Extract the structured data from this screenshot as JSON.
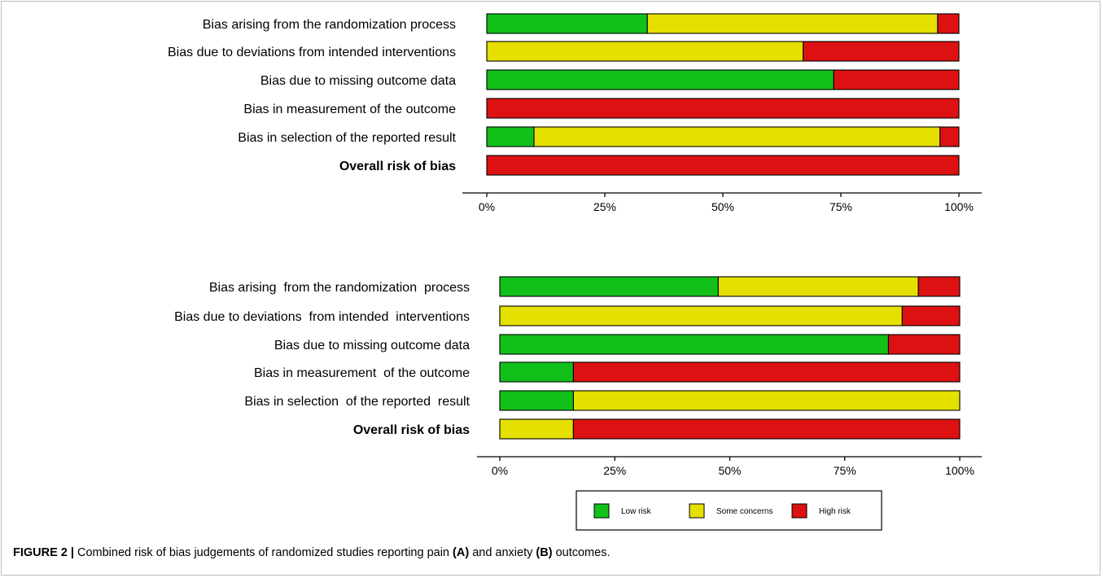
{
  "chart_data": [
    {
      "type": "bar",
      "stacked": true,
      "orientation": "horizontal",
      "categories": [
        "Bias arising from the randomization process",
        "Bias due to deviations from intended interventions",
        "Bias due to missing outcome data",
        "Bias in measurement of the outcome",
        "Bias in selection of the reported result",
        "Overall risk of bias"
      ],
      "series": [
        {
          "name": "Low risk",
          "color": "#11c11a",
          "values": [
            34,
            0,
            73.5,
            0,
            10,
            0
          ]
        },
        {
          "name": "Some concerns",
          "color": "#e5e000",
          "values": [
            61.5,
            67,
            0,
            0,
            86,
            0
          ]
        },
        {
          "name": "High risk",
          "color": "#dd1111",
          "values": [
            4.5,
            33,
            26.5,
            100,
            4,
            100
          ]
        }
      ],
      "xlim": [
        0,
        100
      ],
      "xticks": [
        "0%",
        "25%",
        "50%",
        "75%",
        "100%"
      ]
    },
    {
      "type": "bar",
      "stacked": true,
      "orientation": "horizontal",
      "categories": [
        "Bias arising  from the randomization  process",
        "Bias due to deviations  from intended  interventions",
        "Bias due to missing outcome data",
        "Bias in measurement  of the outcome",
        "Bias in selection  of the reported  result",
        "Overall risk of bias"
      ],
      "series": [
        {
          "name": "Low risk",
          "color": "#11c11a",
          "values": [
            47.5,
            0,
            84.5,
            16,
            16,
            0
          ]
        },
        {
          "name": "Some concerns",
          "color": "#e5e000",
          "values": [
            43.5,
            87.5,
            0,
            0,
            84,
            16
          ]
        },
        {
          "name": "High risk",
          "color": "#dd1111",
          "values": [
            9,
            12.5,
            15.5,
            84,
            0,
            84
          ]
        }
      ],
      "xlim": [
        0,
        100
      ],
      "xticks": [
        "0%",
        "25%",
        "50%",
        "75%",
        "100%"
      ]
    }
  ],
  "legend": {
    "low": "Low risk",
    "some": "Some concerns",
    "high": "High risk"
  },
  "caption": {
    "figure_label": "FIGURE 2 |",
    "text_1": " Combined risk of bias judgements of randomized studies reporting pain ",
    "label_a": "(A)",
    "text_2": " and anxiety ",
    "label_b": "(B)",
    "text_3": " outcomes."
  }
}
